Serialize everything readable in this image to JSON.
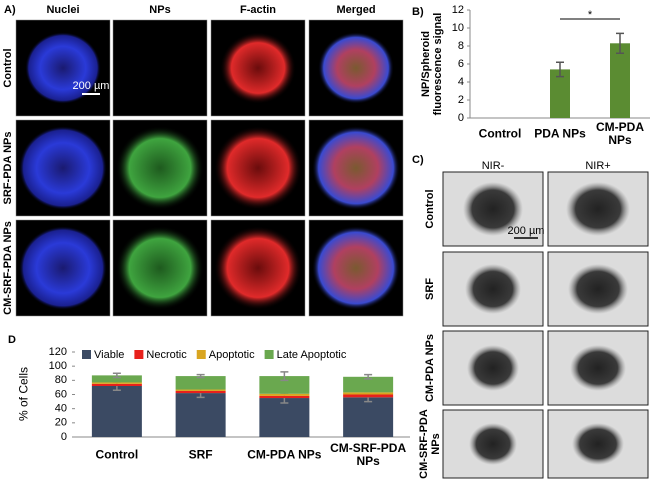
{
  "panel_a": {
    "label": "A)",
    "columns": [
      "Nuclei",
      "NPs",
      "F-actin",
      "Merged"
    ],
    "rows": [
      "Control",
      "SRF-PDA NPs",
      "CM-SRF-PDA NPs"
    ],
    "scale_bar": "200 µm"
  },
  "panel_c": {
    "label": "C)",
    "columns": [
      "NIR-",
      "NIR+"
    ],
    "rows": [
      "Control",
      "SRF",
      "CM-PDA NPs",
      "CM-SRF-PDA NPs"
    ],
    "scale_bar": "200 µm"
  },
  "chart_data": [
    {
      "type": "bar",
      "label": "B)",
      "y_label": "NP/Spheroid fluorescence signal",
      "categories": [
        "Control",
        "PDA NPs",
        "CM-PDA NPs"
      ],
      "values": [
        0,
        5.4,
        8.3
      ],
      "errors": [
        null,
        0.8,
        1.1
      ],
      "color": "#5b8c32",
      "ylim": [
        0,
        12
      ],
      "yticks": [
        0,
        2,
        4,
        6,
        8,
        10,
        12
      ],
      "annotation": "*"
    },
    {
      "type": "stacked_bar",
      "label": "D",
      "y_label": "% of Cells",
      "categories": [
        "Control",
        "SRF",
        "CM-PDA NPs",
        "CM-SRF-PDA NPs"
      ],
      "series": [
        {
          "name": "Viable",
          "color": "#3b4a63",
          "values": [
            72,
            62,
            55,
            56
          ],
          "errors": [
            6,
            6,
            7,
            6
          ]
        },
        {
          "name": "Necrotic",
          "color": "#e8211c",
          "values": [
            3,
            3,
            3,
            4
          ]
        },
        {
          "name": "Apoptotic",
          "color": "#d9a520",
          "values": [
            2,
            2,
            3,
            3
          ]
        },
        {
          "name": "Late Apoptotic",
          "color": "#6aa84f",
          "values": [
            10,
            19,
            25,
            22
          ],
          "errors": [
            3,
            2,
            6,
            3
          ]
        }
      ],
      "ylim": [
        0,
        120
      ],
      "yticks": [
        0,
        20,
        40,
        60,
        80,
        100,
        120
      ],
      "legend": "top"
    }
  ]
}
